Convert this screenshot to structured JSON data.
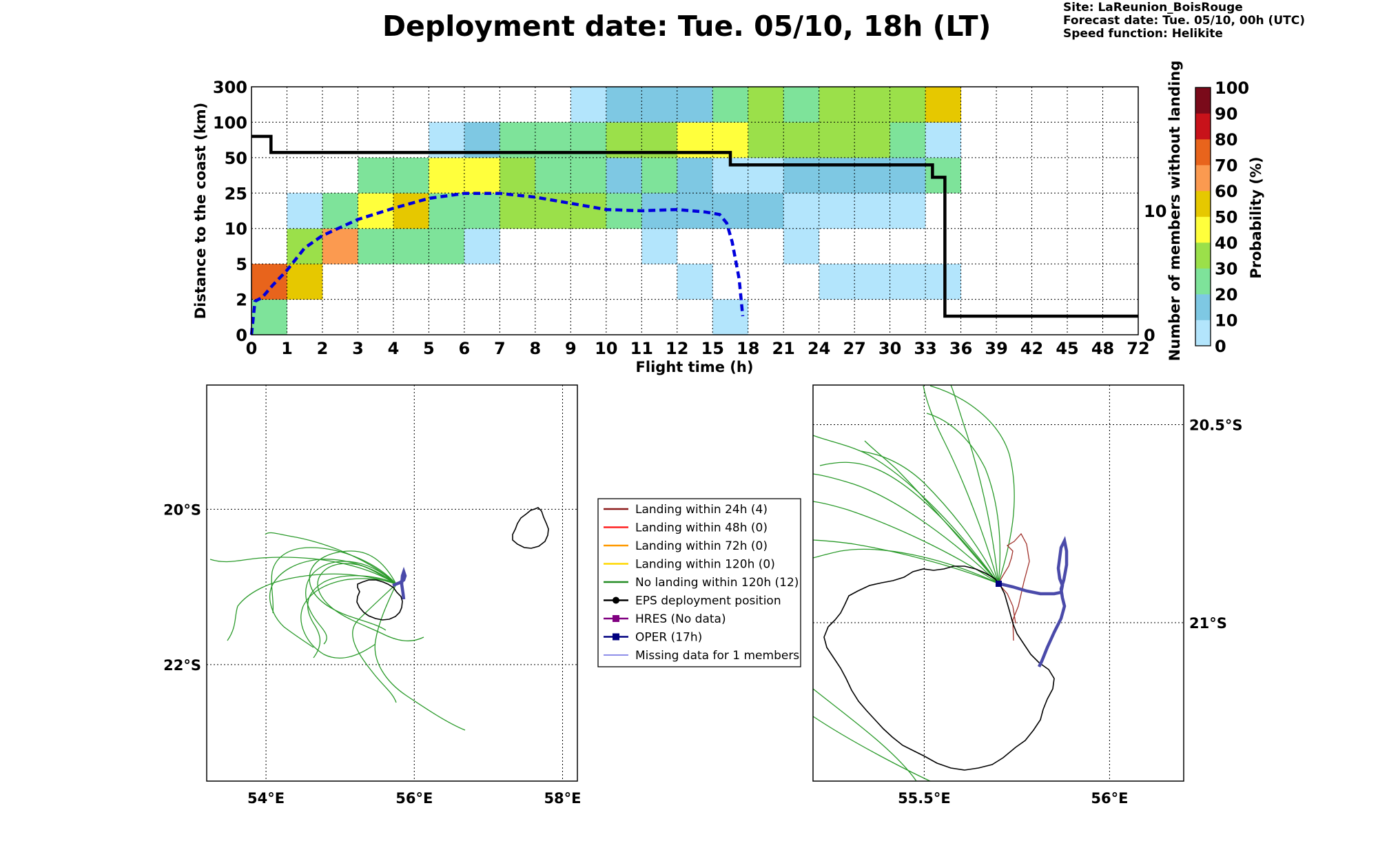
{
  "title": "Deployment date: Tue. 05/10, 18h (LT)",
  "info": {
    "site": "Site: LaReunion_BoisRouge",
    "forecast": "Forecast date: Tue. 05/10, 00h (UTC)",
    "speed": "Speed function: Helikite"
  },
  "colors": {
    "bins": [
      "#b3e5fc",
      "#7ec8e3",
      "#7ee39a",
      "#9be04a",
      "#ffff3c",
      "#e6c800",
      "#fb9a50",
      "#e8641c",
      "#c8121a",
      "#7a0a1a"
    ],
    "landing_24h": "#8b1a1a",
    "landing_48h": "#ff2020",
    "landing_72h": "#ff9900",
    "landing_120h": "#ffd700",
    "no_landing": "#228b22",
    "eps_position": "#000000",
    "hres": "#800080",
    "oper": "#000080",
    "missing": "#4a4adc",
    "count_line": "#000000",
    "median_line": "#0000dd"
  },
  "chart_data": [
    {
      "type": "heatmap",
      "xlabel": "Flight time (h)",
      "ylabel": "Distance to the coast (km)",
      "y2label": "Number of members without landing",
      "x_ticks": [
        "0",
        "1",
        "2",
        "3",
        "4",
        "5",
        "6",
        "7",
        "8",
        "9",
        "10",
        "11",
        "12",
        "15",
        "18",
        "21",
        "24",
        "27",
        "30",
        "33",
        "36",
        "39",
        "42",
        "45",
        "48",
        "72"
      ],
      "y_ticks": [
        "0",
        "2",
        "5",
        "10",
        "25",
        "50",
        "100",
        "300"
      ],
      "y2_ticks": [
        "0",
        "10"
      ],
      "y2lim": [
        0,
        20
      ],
      "grid": true,
      "colorbar": {
        "label": "Probability (%)",
        "ticks": [
          "0",
          "10",
          "20",
          "30",
          "40",
          "50",
          "60",
          "70",
          "80",
          "90",
          "100"
        ]
      },
      "cells": [
        {
          "x": "0-1",
          "y": "0-2",
          "prob": 20
        },
        {
          "x": "0-1",
          "y": "2-5",
          "prob": 70
        },
        {
          "x": "1-2",
          "y": "2-5",
          "prob": 50
        },
        {
          "x": "1-2",
          "y": "5-10",
          "prob": 30
        },
        {
          "x": "1-2",
          "y": "10-25",
          "prob": 0
        },
        {
          "x": "2-3",
          "y": "5-10",
          "prob": 60
        },
        {
          "x": "2-3",
          "y": "10-25",
          "prob": 20
        },
        {
          "x": "3-4",
          "y": "5-10",
          "prob": 20
        },
        {
          "x": "3-4",
          "y": "10-25",
          "prob": 40
        },
        {
          "x": "3-4",
          "y": "25-50",
          "prob": 20
        },
        {
          "x": "4-5",
          "y": "5-10",
          "prob": 20
        },
        {
          "x": "4-5",
          "y": "10-25",
          "prob": 50
        },
        {
          "x": "4-5",
          "y": "25-50",
          "prob": 20
        },
        {
          "x": "5-6",
          "y": "5-10",
          "prob": 20
        },
        {
          "x": "5-6",
          "y": "10-25",
          "prob": 20
        },
        {
          "x": "5-6",
          "y": "25-50",
          "prob": 40
        },
        {
          "x": "5-6",
          "y": "50-100",
          "prob": 0
        },
        {
          "x": "6-7",
          "y": "5-10",
          "prob": 0
        },
        {
          "x": "6-7",
          "y": "10-25",
          "prob": 20
        },
        {
          "x": "6-7",
          "y": "25-50",
          "prob": 40
        },
        {
          "x": "6-7",
          "y": "50-100",
          "prob": 10
        },
        {
          "x": "7-8",
          "y": "10-25",
          "prob": 30
        },
        {
          "x": "7-8",
          "y": "25-50",
          "prob": 30
        },
        {
          "x": "7-8",
          "y": "50-100",
          "prob": 20
        },
        {
          "x": "8-9",
          "y": "10-25",
          "prob": 30
        },
        {
          "x": "8-9",
          "y": "25-50",
          "prob": 20
        },
        {
          "x": "8-9",
          "y": "50-100",
          "prob": 20
        },
        {
          "x": "9-10",
          "y": "10-25",
          "prob": 30
        },
        {
          "x": "9-10",
          "y": "25-50",
          "prob": 20
        },
        {
          "x": "9-10",
          "y": "50-100",
          "prob": 20
        },
        {
          "x": "9-10",
          "y": "100-300",
          "prob": 0
        },
        {
          "x": "10-11",
          "y": "10-25",
          "prob": 20
        },
        {
          "x": "10-11",
          "y": "25-50",
          "prob": 10
        },
        {
          "x": "10-11",
          "y": "50-100",
          "prob": 30
        },
        {
          "x": "10-11",
          "y": "100-300",
          "prob": 10
        },
        {
          "x": "11-12",
          "y": "5-10",
          "prob": 0
        },
        {
          "x": "11-12",
          "y": "10-25",
          "prob": 10
        },
        {
          "x": "11-12",
          "y": "25-50",
          "prob": 20
        },
        {
          "x": "11-12",
          "y": "50-100",
          "prob": 30
        },
        {
          "x": "11-12",
          "y": "100-300",
          "prob": 10
        },
        {
          "x": "12-15",
          "y": "2-5",
          "prob": 0
        },
        {
          "x": "12-15",
          "y": "10-25",
          "prob": 10
        },
        {
          "x": "12-15",
          "y": "25-50",
          "prob": 10
        },
        {
          "x": "12-15",
          "y": "50-100",
          "prob": 40
        },
        {
          "x": "12-15",
          "y": "100-300",
          "prob": 10
        },
        {
          "x": "15-18",
          "y": "0-2",
          "prob": 0
        },
        {
          "x": "15-18",
          "y": "10-25",
          "prob": 10
        },
        {
          "x": "15-18",
          "y": "25-50",
          "prob": 0
        },
        {
          "x": "15-18",
          "y": "50-100",
          "prob": 40
        },
        {
          "x": "15-18",
          "y": "100-300",
          "prob": 20
        },
        {
          "x": "18-21",
          "y": "10-25",
          "prob": 10
        },
        {
          "x": "18-21",
          "y": "25-50",
          "prob": 0
        },
        {
          "x": "18-21",
          "y": "50-100",
          "prob": 30
        },
        {
          "x": "18-21",
          "y": "100-300",
          "prob": 30
        },
        {
          "x": "21-24",
          "y": "5-10",
          "prob": 0
        },
        {
          "x": "21-24",
          "y": "10-25",
          "prob": 0
        },
        {
          "x": "21-24",
          "y": "25-50",
          "prob": 10
        },
        {
          "x": "21-24",
          "y": "50-100",
          "prob": 30
        },
        {
          "x": "21-24",
          "y": "100-300",
          "prob": 20
        },
        {
          "x": "24-27",
          "y": "2-5",
          "prob": 0
        },
        {
          "x": "24-27",
          "y": "10-25",
          "prob": 0
        },
        {
          "x": "24-27",
          "y": "25-50",
          "prob": 10
        },
        {
          "x": "24-27",
          "y": "50-100",
          "prob": 30
        },
        {
          "x": "24-27",
          "y": "100-300",
          "prob": 30
        },
        {
          "x": "27-30",
          "y": "2-5",
          "prob": 0
        },
        {
          "x": "27-30",
          "y": "10-25",
          "prob": 0
        },
        {
          "x": "27-30",
          "y": "25-50",
          "prob": 10
        },
        {
          "x": "27-30",
          "y": "50-100",
          "prob": 30
        },
        {
          "x": "27-30",
          "y": "100-300",
          "prob": 30
        },
        {
          "x": "30-33",
          "y": "2-5",
          "prob": 0
        },
        {
          "x": "30-33",
          "y": "10-25",
          "prob": 0
        },
        {
          "x": "30-33",
          "y": "25-50",
          "prob": 10
        },
        {
          "x": "30-33",
          "y": "50-100",
          "prob": 20
        },
        {
          "x": "30-33",
          "y": "100-300",
          "prob": 30
        },
        {
          "x": "33-36",
          "y": "2-5",
          "prob": 0
        },
        {
          "x": "33-36",
          "y": "25-50",
          "prob": 20
        },
        {
          "x": "33-36",
          "y": "50-100",
          "prob": 0
        },
        {
          "x": "33-36",
          "y": "100-300",
          "prob": 50
        }
      ],
      "members_without_landing": {
        "x": [
          0,
          0.55,
          0.55,
          13.5,
          13.5,
          19.2,
          19.2,
          19.55,
          19.55,
          25
        ],
        "y": [
          16.0,
          16.0,
          14.7,
          14.7,
          13.7,
          13.7,
          12.7,
          12.7,
          1.5,
          1.5
        ]
      },
      "median_distance": {
        "x": [
          0,
          0.1,
          0.3,
          0.6,
          1.0,
          1.5,
          2.0,
          3.0,
          4.0,
          5.0,
          6.0,
          7.0,
          8.0,
          9.0,
          10.0,
          11.0,
          12.0,
          12.8,
          13.2,
          13.4,
          13.55,
          13.75,
          13.85
        ],
        "y": [
          0,
          2.7,
          3.0,
          4.0,
          5.2,
          7.0,
          8.0,
          9.3,
          10.2,
          11.0,
          11.4,
          11.4,
          11.1,
          10.6,
          10.1,
          10.0,
          10.1,
          9.9,
          9.7,
          9.0,
          7.5,
          4.5,
          1.5
        ]
      }
    },
    {
      "type": "map",
      "name": "regional",
      "x_ticks": [
        "54°E",
        "56°E",
        "58°E"
      ],
      "y_ticks": [
        "20°S",
        "22°S"
      ],
      "xlim": [
        53.2,
        58.2
      ],
      "ylim": [
        -23.5,
        -18.4
      ],
      "legend": {
        "placement": "right",
        "entries": [
          {
            "label": "Landing within 24h (4)",
            "color_key": "landing_24h",
            "marker": "line"
          },
          {
            "label": "Landing within 48h (0)",
            "color_key": "landing_48h",
            "marker": "line"
          },
          {
            "label": "Landing within 72h (0)",
            "color_key": "landing_72h",
            "marker": "line"
          },
          {
            "label": "Landing within 120h (0)",
            "color_key": "landing_120h",
            "marker": "line"
          },
          {
            "label": "No landing within 120h (12)",
            "color_key": "no_landing",
            "marker": "line"
          },
          {
            "label": "EPS deployment position",
            "color_key": "eps_position",
            "marker": "circle"
          },
          {
            "label": "HRES (No data)",
            "color_key": "hres",
            "marker": "square"
          },
          {
            "label": "OPER (17h)",
            "color_key": "oper",
            "marker": "square"
          },
          {
            "label": "Missing data for 1 members",
            "color_key": "missing",
            "marker": "thin-line"
          }
        ]
      }
    },
    {
      "type": "map",
      "name": "zoom",
      "x_ticks": [
        "55.5°E",
        "56°E"
      ],
      "y_ticks": [
        "20.5°S",
        "21°S"
      ],
      "xlim": [
        55.2,
        56.2
      ],
      "ylim": [
        -21.4,
        -20.4
      ]
    }
  ]
}
